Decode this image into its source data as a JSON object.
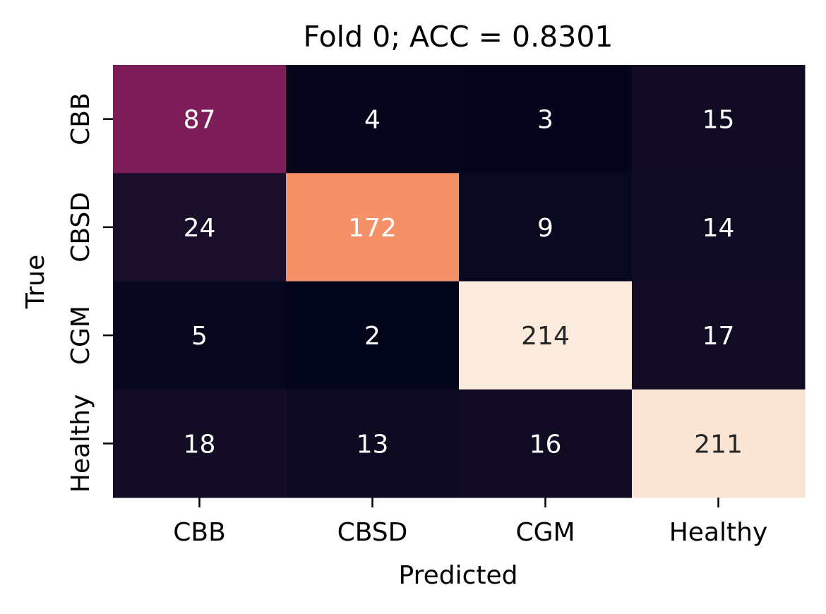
{
  "chart_data": {
    "type": "heatmap",
    "title": "Fold 0; ACC = 0.8301",
    "xlabel": "Predicted",
    "ylabel": "True",
    "x_categories": [
      "CBB",
      "CBSD",
      "CGM",
      "Healthy"
    ],
    "y_categories": [
      "CBB",
      "CBSD",
      "CGM",
      "Healthy"
    ],
    "values": [
      [
        87,
        4,
        3,
        15
      ],
      [
        24,
        172,
        9,
        14
      ],
      [
        5,
        2,
        214,
        17
      ],
      [
        18,
        13,
        16,
        211
      ]
    ],
    "colorbar": false,
    "colormap": "rocket",
    "value_range": [
      2,
      214
    ],
    "annotation_colors": {
      "on_dark": "#ffffff",
      "on_light": "#262626"
    }
  }
}
